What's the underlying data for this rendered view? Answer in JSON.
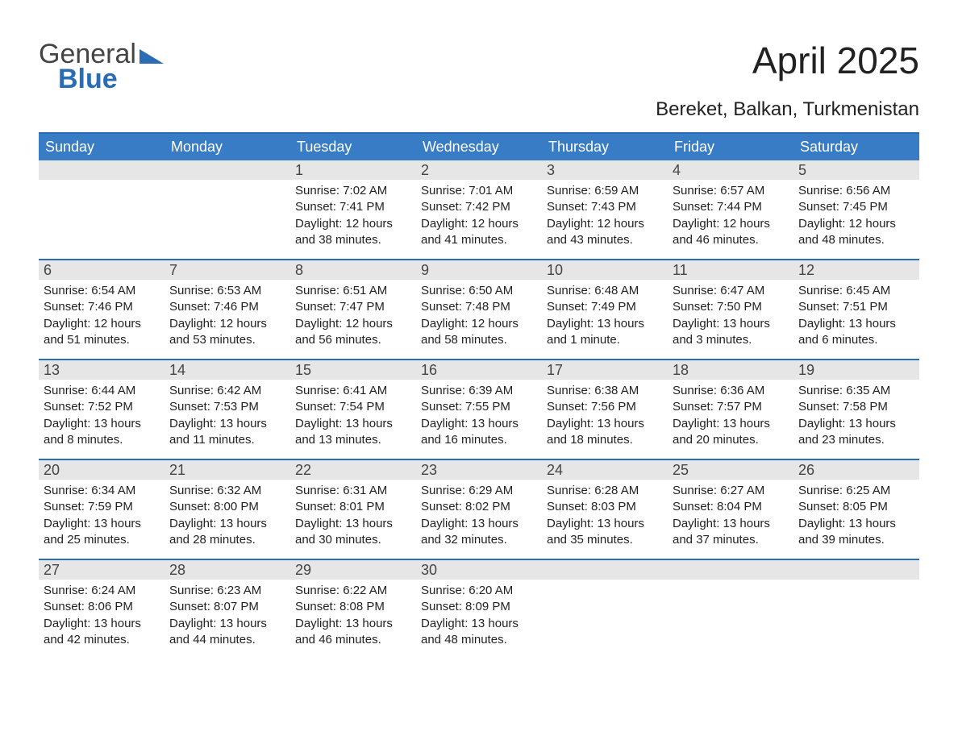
{
  "logo": {
    "line1": "General",
    "line2": "Blue"
  },
  "title": "April 2025",
  "subtitle": "Bereket, Balkan, Turkmenistan",
  "colors": {
    "header_bg": "#377cc5",
    "border": "#2a6db5",
    "daynum_bg": "#e6e6e6",
    "background": "#ffffff",
    "text": "#222222",
    "logo_blue": "#2a6db5"
  },
  "day_headers": [
    "Sunday",
    "Monday",
    "Tuesday",
    "Wednesday",
    "Thursday",
    "Friday",
    "Saturday"
  ],
  "weeks": [
    [
      {
        "day": "",
        "sunrise": "",
        "sunset": "",
        "daylight": ""
      },
      {
        "day": "",
        "sunrise": "",
        "sunset": "",
        "daylight": ""
      },
      {
        "day": "1",
        "sunrise": "Sunrise: 7:02 AM",
        "sunset": "Sunset: 7:41 PM",
        "daylight": "Daylight: 12 hours and 38 minutes."
      },
      {
        "day": "2",
        "sunrise": "Sunrise: 7:01 AM",
        "sunset": "Sunset: 7:42 PM",
        "daylight": "Daylight: 12 hours and 41 minutes."
      },
      {
        "day": "3",
        "sunrise": "Sunrise: 6:59 AM",
        "sunset": "Sunset: 7:43 PM",
        "daylight": "Daylight: 12 hours and 43 minutes."
      },
      {
        "day": "4",
        "sunrise": "Sunrise: 6:57 AM",
        "sunset": "Sunset: 7:44 PM",
        "daylight": "Daylight: 12 hours and 46 minutes."
      },
      {
        "day": "5",
        "sunrise": "Sunrise: 6:56 AM",
        "sunset": "Sunset: 7:45 PM",
        "daylight": "Daylight: 12 hours and 48 minutes."
      }
    ],
    [
      {
        "day": "6",
        "sunrise": "Sunrise: 6:54 AM",
        "sunset": "Sunset: 7:46 PM",
        "daylight": "Daylight: 12 hours and 51 minutes."
      },
      {
        "day": "7",
        "sunrise": "Sunrise: 6:53 AM",
        "sunset": "Sunset: 7:46 PM",
        "daylight": "Daylight: 12 hours and 53 minutes."
      },
      {
        "day": "8",
        "sunrise": "Sunrise: 6:51 AM",
        "sunset": "Sunset: 7:47 PM",
        "daylight": "Daylight: 12 hours and 56 minutes."
      },
      {
        "day": "9",
        "sunrise": "Sunrise: 6:50 AM",
        "sunset": "Sunset: 7:48 PM",
        "daylight": "Daylight: 12 hours and 58 minutes."
      },
      {
        "day": "10",
        "sunrise": "Sunrise: 6:48 AM",
        "sunset": "Sunset: 7:49 PM",
        "daylight": "Daylight: 13 hours and 1 minute."
      },
      {
        "day": "11",
        "sunrise": "Sunrise: 6:47 AM",
        "sunset": "Sunset: 7:50 PM",
        "daylight": "Daylight: 13 hours and 3 minutes."
      },
      {
        "day": "12",
        "sunrise": "Sunrise: 6:45 AM",
        "sunset": "Sunset: 7:51 PM",
        "daylight": "Daylight: 13 hours and 6 minutes."
      }
    ],
    [
      {
        "day": "13",
        "sunrise": "Sunrise: 6:44 AM",
        "sunset": "Sunset: 7:52 PM",
        "daylight": "Daylight: 13 hours and 8 minutes."
      },
      {
        "day": "14",
        "sunrise": "Sunrise: 6:42 AM",
        "sunset": "Sunset: 7:53 PM",
        "daylight": "Daylight: 13 hours and 11 minutes."
      },
      {
        "day": "15",
        "sunrise": "Sunrise: 6:41 AM",
        "sunset": "Sunset: 7:54 PM",
        "daylight": "Daylight: 13 hours and 13 minutes."
      },
      {
        "day": "16",
        "sunrise": "Sunrise: 6:39 AM",
        "sunset": "Sunset: 7:55 PM",
        "daylight": "Daylight: 13 hours and 16 minutes."
      },
      {
        "day": "17",
        "sunrise": "Sunrise: 6:38 AM",
        "sunset": "Sunset: 7:56 PM",
        "daylight": "Daylight: 13 hours and 18 minutes."
      },
      {
        "day": "18",
        "sunrise": "Sunrise: 6:36 AM",
        "sunset": "Sunset: 7:57 PM",
        "daylight": "Daylight: 13 hours and 20 minutes."
      },
      {
        "day": "19",
        "sunrise": "Sunrise: 6:35 AM",
        "sunset": "Sunset: 7:58 PM",
        "daylight": "Daylight: 13 hours and 23 minutes."
      }
    ],
    [
      {
        "day": "20",
        "sunrise": "Sunrise: 6:34 AM",
        "sunset": "Sunset: 7:59 PM",
        "daylight": "Daylight: 13 hours and 25 minutes."
      },
      {
        "day": "21",
        "sunrise": "Sunrise: 6:32 AM",
        "sunset": "Sunset: 8:00 PM",
        "daylight": "Daylight: 13 hours and 28 minutes."
      },
      {
        "day": "22",
        "sunrise": "Sunrise: 6:31 AM",
        "sunset": "Sunset: 8:01 PM",
        "daylight": "Daylight: 13 hours and 30 minutes."
      },
      {
        "day": "23",
        "sunrise": "Sunrise: 6:29 AM",
        "sunset": "Sunset: 8:02 PM",
        "daylight": "Daylight: 13 hours and 32 minutes."
      },
      {
        "day": "24",
        "sunrise": "Sunrise: 6:28 AM",
        "sunset": "Sunset: 8:03 PM",
        "daylight": "Daylight: 13 hours and 35 minutes."
      },
      {
        "day": "25",
        "sunrise": "Sunrise: 6:27 AM",
        "sunset": "Sunset: 8:04 PM",
        "daylight": "Daylight: 13 hours and 37 minutes."
      },
      {
        "day": "26",
        "sunrise": "Sunrise: 6:25 AM",
        "sunset": "Sunset: 8:05 PM",
        "daylight": "Daylight: 13 hours and 39 minutes."
      }
    ],
    [
      {
        "day": "27",
        "sunrise": "Sunrise: 6:24 AM",
        "sunset": "Sunset: 8:06 PM",
        "daylight": "Daylight: 13 hours and 42 minutes."
      },
      {
        "day": "28",
        "sunrise": "Sunrise: 6:23 AM",
        "sunset": "Sunset: 8:07 PM",
        "daylight": "Daylight: 13 hours and 44 minutes."
      },
      {
        "day": "29",
        "sunrise": "Sunrise: 6:22 AM",
        "sunset": "Sunset: 8:08 PM",
        "daylight": "Daylight: 13 hours and 46 minutes."
      },
      {
        "day": "30",
        "sunrise": "Sunrise: 6:20 AM",
        "sunset": "Sunset: 8:09 PM",
        "daylight": "Daylight: 13 hours and 48 minutes."
      },
      {
        "day": "",
        "sunrise": "",
        "sunset": "",
        "daylight": ""
      },
      {
        "day": "",
        "sunrise": "",
        "sunset": "",
        "daylight": ""
      },
      {
        "day": "",
        "sunrise": "",
        "sunset": "",
        "daylight": ""
      }
    ]
  ]
}
